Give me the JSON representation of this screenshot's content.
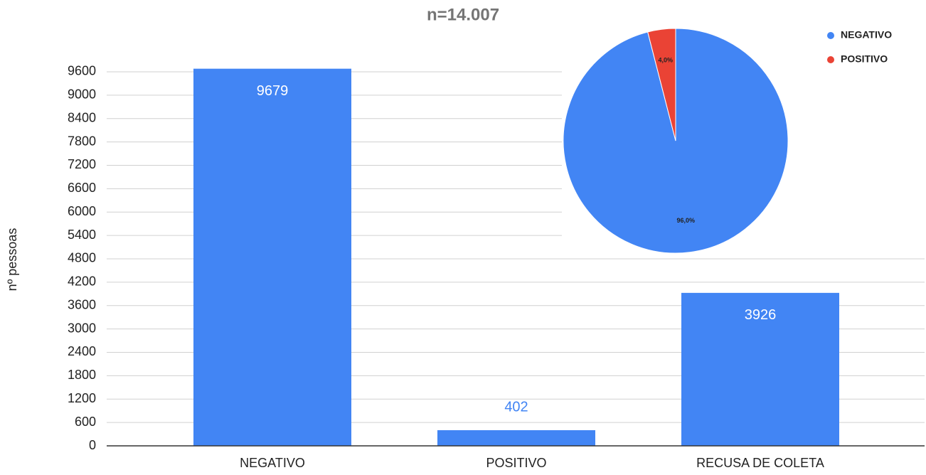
{
  "chart_data": [
    {
      "type": "bar",
      "title": "n=14.007",
      "y_label": "nº pessoas",
      "categories": [
        "NEGATIVO",
        "POSITIVO",
        "RECUSA DE COLETA"
      ],
      "values": [
        9679,
        402,
        3926
      ],
      "color": "#4285f4",
      "ylim": [
        0,
        9800
      ],
      "yticks": [
        0,
        600,
        1200,
        1800,
        2400,
        3000,
        3600,
        4200,
        4800,
        5400,
        6000,
        6600,
        7200,
        7800,
        8400,
        9000,
        9600
      ],
      "grid": true
    },
    {
      "type": "pie",
      "categories": [
        "NEGATIVO",
        "POSITIVO"
      ],
      "values": [
        96.0,
        4.0
      ],
      "value_labels": [
        "96,0%",
        "4,0%"
      ],
      "colors": [
        "#4285f4",
        "#ea4335"
      ],
      "legend": "top-right"
    }
  ]
}
